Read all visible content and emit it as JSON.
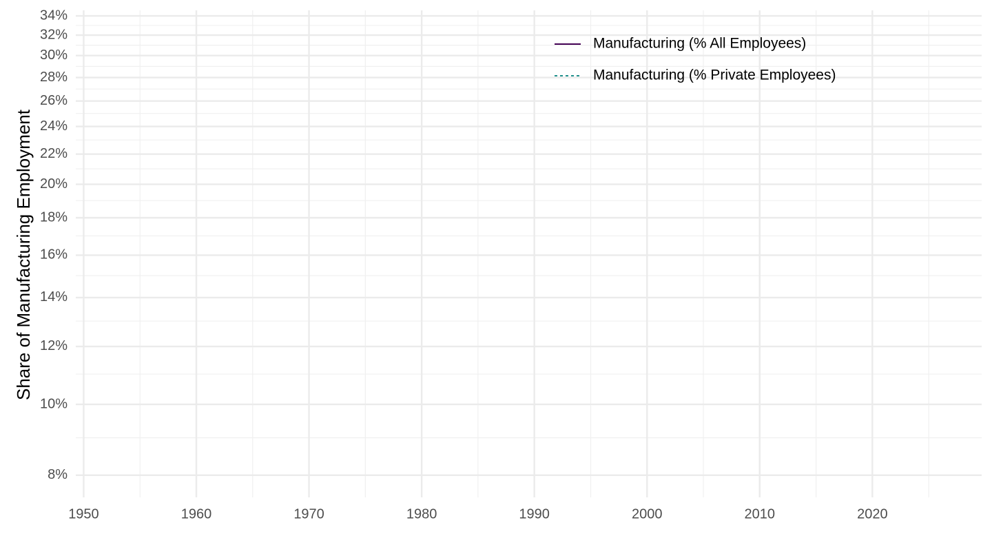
{
  "chart_data": {
    "type": "line",
    "y_label": "Share of Manufacturing Employment",
    "x": [],
    "series": [
      {
        "name": "Manufacturing (% All Employees)",
        "color": "#440154",
        "linestyle": "solid",
        "values": []
      },
      {
        "name": "Manufacturing (% Private Employees)",
        "color": "#21908c",
        "linestyle": "dotted",
        "values": []
      }
    ],
    "xlim": [
      1949.3,
      2029.7
    ],
    "xticks": [
      1950,
      1960,
      1970,
      1980,
      1990,
      2000,
      2010,
      2020
    ],
    "xminor": [
      1955,
      1965,
      1975,
      1985,
      1995,
      2005,
      2015,
      2025
    ],
    "ylim": [
      7.46,
      34.6
    ],
    "log_y": true,
    "yticks": [
      {
        "value": 8,
        "label": "8%"
      },
      {
        "value": 10,
        "label": "10%"
      },
      {
        "value": 12,
        "label": "12%"
      },
      {
        "value": 14,
        "label": "14%"
      },
      {
        "value": 16,
        "label": "16%"
      },
      {
        "value": 18,
        "label": "18%"
      },
      {
        "value": 20,
        "label": "20%"
      },
      {
        "value": 22,
        "label": "22%"
      },
      {
        "value": 24,
        "label": "24%"
      },
      {
        "value": 26,
        "label": "26%"
      },
      {
        "value": 28,
        "label": "28%"
      },
      {
        "value": 30,
        "label": "30%"
      },
      {
        "value": 32,
        "label": "32%"
      },
      {
        "value": 34,
        "label": "34%"
      }
    ],
    "yminor": [
      9,
      11,
      13,
      15,
      17,
      19,
      21,
      23,
      25,
      27,
      29,
      31,
      33
    ],
    "grid": true,
    "legend_position": "top-right"
  }
}
